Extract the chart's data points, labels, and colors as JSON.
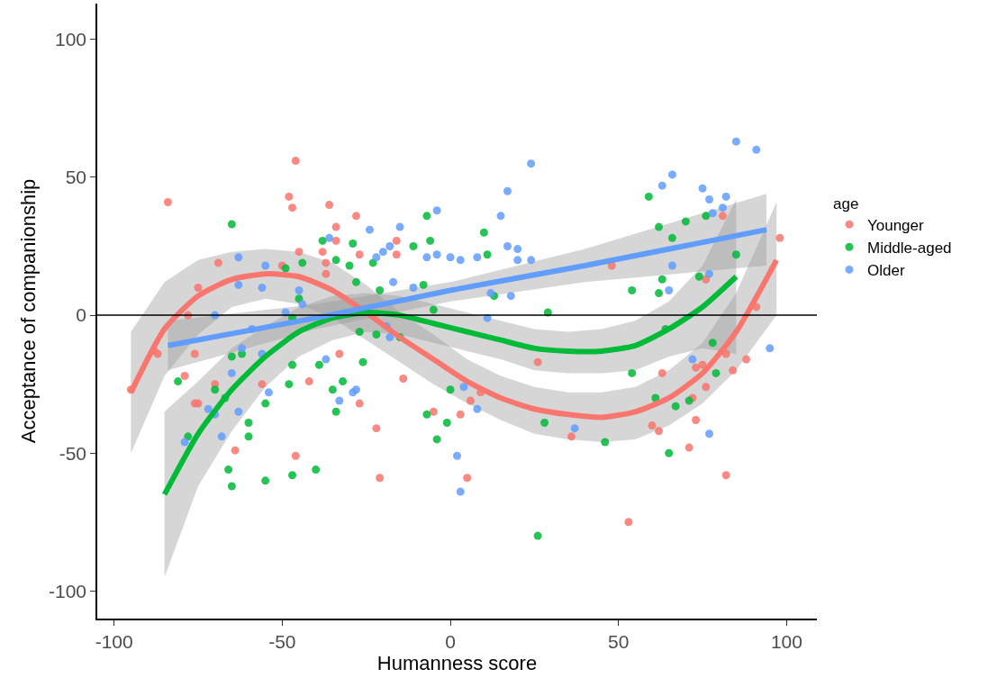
{
  "chart_data": {
    "type": "scatter",
    "xlabel": "Humanness score",
    "ylabel": "Acceptance of companionship",
    "legend_title": "age",
    "xlim": [
      -105,
      109
    ],
    "ylim": [
      -110,
      113
    ],
    "xticks": [
      -100,
      -50,
      0,
      50,
      100
    ],
    "yticks": [
      -100,
      -50,
      0,
      50,
      100
    ],
    "grid": false,
    "legend": "right",
    "marker": "circle",
    "line_style": "solid",
    "ref_lines": [
      {
        "axis": "y",
        "value": 0,
        "color": "#000000"
      }
    ],
    "series": [
      {
        "name": "Younger",
        "color": "#f8766d",
        "x": [
          -84,
          -88,
          -95,
          -78,
          -76,
          -75,
          -69,
          -75,
          -46,
          -48,
          -47,
          -36,
          -28,
          -34,
          -34,
          -45,
          -38,
          -27,
          -37,
          -37,
          -50,
          -87,
          -79,
          -70,
          -76,
          -64,
          -56,
          -42,
          -33,
          -46,
          -27,
          -22,
          -21,
          -14,
          -5,
          -16,
          -16,
          3,
          6,
          9,
          5,
          26,
          36,
          53,
          60,
          62,
          63,
          71,
          73,
          76,
          72,
          73,
          75,
          82,
          84,
          88,
          82,
          81,
          98,
          76,
          91,
          48
        ],
        "values": [
          41,
          -13,
          -27,
          0,
          -14,
          -32,
          19,
          10,
          56,
          43,
          39,
          40,
          36,
          32,
          27,
          23,
          23,
          22,
          19,
          15,
          18,
          -14,
          -22,
          -25,
          -32,
          -49,
          -25,
          -24,
          -14,
          -51,
          -32,
          -41,
          -59,
          -23,
          -35,
          27,
          22,
          -36,
          -31,
          -28,
          -59,
          -17,
          -44,
          -75,
          -40,
          -42,
          -21,
          -48,
          -38,
          -26,
          -30,
          -19,
          -18,
          -58,
          -20,
          -16,
          -14,
          36,
          28,
          13,
          3,
          18
        ]
      },
      {
        "name": "Middle-aged",
        "color": "#00ba38",
        "x": [
          -65,
          -38,
          -29,
          -34,
          -30,
          -49,
          -44,
          -28,
          -45,
          -47,
          -65,
          -81,
          -70,
          -67,
          -78,
          -62,
          -47,
          -48,
          -55,
          -60,
          -60,
          -66,
          -65,
          -55,
          -47,
          -40,
          -39,
          -35,
          -32,
          -34,
          -26,
          -7,
          -4,
          -1,
          0,
          -7,
          -6,
          -11,
          -23,
          10,
          11,
          -8,
          -21,
          13,
          29,
          -27,
          -22,
          -15,
          -5,
          26,
          28,
          46,
          54,
          61,
          65,
          67,
          71,
          79,
          59,
          62,
          66,
          70,
          76,
          85,
          63,
          62,
          54,
          74,
          64,
          78
        ],
        "values": [
          33,
          27,
          26,
          20,
          18,
          17,
          19,
          12,
          6,
          -1,
          -15,
          -24,
          -27,
          -30,
          -44,
          -14,
          -18,
          -25,
          -32,
          -39,
          -44,
          -56,
          -62,
          -60,
          -58,
          -56,
          -18,
          -27,
          -24,
          -35,
          -17,
          -36,
          -45,
          -39,
          -27,
          36,
          27,
          25,
          19,
          30,
          22,
          11,
          9,
          7,
          1,
          -6,
          -7,
          -8,
          2,
          -80,
          -39,
          -46,
          -21,
          -30,
          -50,
          -33,
          -31,
          -21,
          43,
          32,
          28,
          34,
          36,
          22,
          13,
          8,
          9,
          14,
          -5,
          -10
        ]
      },
      {
        "name": "Older",
        "color": "#619cff",
        "x": [
          -63,
          -55,
          -63,
          -56,
          -36,
          -45,
          -44,
          -49,
          -70,
          -59,
          -62,
          -56,
          -65,
          -72,
          -70,
          -63,
          -79,
          -68,
          -54,
          -37,
          -33,
          -29,
          -28,
          24,
          17,
          15,
          -4,
          -15,
          -24,
          -18,
          -20,
          -22,
          -7,
          -4,
          0,
          3,
          8,
          17,
          20,
          20,
          24,
          -17,
          -11,
          12,
          18,
          11,
          -19,
          -18,
          4,
          8,
          2,
          3,
          37,
          77,
          95,
          72,
          85,
          91,
          66,
          63,
          75,
          77,
          82,
          78,
          81,
          66,
          77,
          65
        ],
        "values": [
          21,
          18,
          11,
          10,
          28,
          9,
          4,
          1,
          0,
          -5,
          -12,
          -14,
          -21,
          -34,
          -36,
          -35,
          -46,
          -44,
          -28,
          -16,
          -31,
          -28,
          -27,
          55,
          45,
          36,
          38,
          32,
          31,
          25,
          23,
          21,
          21,
          22,
          21,
          20,
          21,
          25,
          24,
          20,
          20,
          12,
          10,
          8,
          7,
          -1,
          -4,
          -8,
          -26,
          -34,
          -51,
          -64,
          -41,
          -43,
          -12,
          -16,
          63,
          60,
          51,
          47,
          46,
          42,
          43,
          37,
          39,
          18,
          15,
          9
        ]
      },
      {
        "type": "line",
        "marker": "none",
        "color": "#f8766d",
        "x": [
          -95,
          -85,
          -75,
          -65,
          -55,
          -45,
          -35,
          -25,
          -15,
          -5,
          5,
          15,
          25,
          35,
          45,
          55,
          65,
          75,
          85,
          97
        ],
        "values": [
          -28,
          -5,
          7,
          13,
          15,
          14,
          9,
          1,
          -8,
          -16,
          -24,
          -30,
          -34,
          -36,
          -37,
          -35,
          -30,
          -21,
          -6,
          20
        ],
        "lower": [
          -50,
          -22,
          -7,
          3,
          6,
          4,
          -1,
          -9,
          -17,
          -25,
          -32,
          -38,
          -43,
          -45,
          -46,
          -45,
          -40,
          -32,
          -20,
          0
        ],
        "upper": [
          -6,
          12,
          20,
          23,
          24,
          23,
          19,
          11,
          1,
          -7,
          -16,
          -22,
          -26,
          -28,
          -28,
          -26,
          -20,
          -10,
          8,
          41
        ]
      },
      {
        "type": "line",
        "marker": "none",
        "color": "#00ba38",
        "x": [
          -85,
          -75,
          -65,
          -55,
          -45,
          -35,
          -25,
          -15,
          -5,
          5,
          15,
          25,
          35,
          45,
          55,
          65,
          75,
          85
        ],
        "values": [
          -65,
          -43,
          -27,
          -15,
          -6,
          -1,
          1,
          0,
          -3,
          -6,
          -9,
          -12,
          -13,
          -13,
          -11,
          -5,
          3,
          14
        ],
        "lower": [
          -95,
          -62,
          -42,
          -26,
          -15,
          -9,
          -6,
          -7,
          -10,
          -13,
          -16,
          -20,
          -21,
          -21,
          -20,
          -15,
          -12,
          -14
        ],
        "upper": [
          -35,
          -24,
          -12,
          -4,
          3,
          7,
          8,
          7,
          4,
          1,
          -2,
          -5,
          -6,
          -5,
          -2,
          5,
          18,
          42
        ]
      },
      {
        "type": "line",
        "marker": "none",
        "color": "#619cff",
        "x": [
          -84,
          -40,
          0,
          40,
          94
        ],
        "values": [
          -11,
          -1,
          9,
          18,
          31
        ],
        "lower": [
          -20,
          -5,
          5,
          12,
          18
        ],
        "upper": [
          -2,
          4,
          12,
          24,
          44
        ]
      }
    ]
  }
}
